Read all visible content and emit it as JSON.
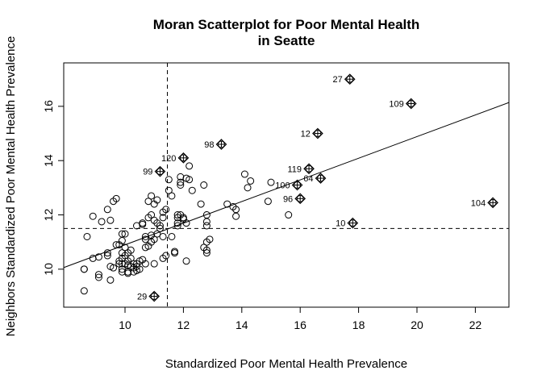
{
  "chart_data": {
    "type": "scatter",
    "title": "Moran Scatterplot for Poor Mental Health",
    "subtitle": "in Seatte",
    "xlabel": "Standardized Poor Mental Health Prevalence",
    "ylabel": "Neighbors Standardized Poor Mental Health Prevalence",
    "xlim": [
      7.9,
      23.15
    ],
    "ylim": [
      8.6,
      17.6
    ],
    "xticks": [
      10,
      12,
      14,
      16,
      18,
      20,
      22
    ],
    "yticks": [
      10,
      12,
      14,
      16
    ],
    "mean_x": 11.45,
    "mean_y": 11.5,
    "regression": {
      "x": [
        7.9,
        23.15
      ],
      "y": [
        10.06,
        16.14
      ]
    },
    "grid": false,
    "legend": "none",
    "points": [
      [
        8.6,
        9.2
      ],
      [
        8.6,
        10.0
      ],
      [
        8.6,
        10.0
      ],
      [
        8.7,
        11.2
      ],
      [
        8.9,
        10.4
      ],
      [
        8.9,
        11.95
      ],
      [
        9.1,
        9.8
      ],
      [
        9.1,
        9.7
      ],
      [
        9.1,
        10.45
      ],
      [
        9.2,
        11.75
      ],
      [
        9.4,
        10.5
      ],
      [
        9.4,
        10.6
      ],
      [
        9.4,
        12.2
      ],
      [
        9.5,
        11.8
      ],
      [
        9.5,
        9.6
      ],
      [
        9.5,
        10.1
      ],
      [
        9.6,
        12.5
      ],
      [
        9.6,
        10.05
      ],
      [
        9.7,
        12.6
      ],
      [
        9.7,
        10.9
      ],
      [
        9.8,
        10.3
      ],
      [
        9.8,
        10.2
      ],
      [
        9.8,
        10.9
      ],
      [
        9.9,
        11.3
      ],
      [
        9.9,
        10.6
      ],
      [
        9.9,
        10.4
      ],
      [
        9.9,
        10.2
      ],
      [
        9.9,
        10.0
      ],
      [
        9.9,
        9.9
      ],
      [
        9.9,
        11.05
      ],
      [
        10.0,
        10.5
      ],
      [
        10.0,
        10.8
      ],
      [
        10.0,
        11.3
      ],
      [
        10.0,
        10.2
      ],
      [
        10.1,
        10.3
      ],
      [
        10.1,
        10.6
      ],
      [
        10.1,
        10.15
      ],
      [
        10.1,
        9.9
      ],
      [
        10.1,
        9.85
      ],
      [
        10.2,
        10.1
      ],
      [
        10.2,
        10.4
      ],
      [
        10.2,
        10.7
      ],
      [
        10.3,
        10.2
      ],
      [
        10.3,
        10.05
      ],
      [
        10.3,
        9.9
      ],
      [
        10.4,
        11.6
      ],
      [
        10.4,
        10.2
      ],
      [
        10.4,
        10.1
      ],
      [
        10.4,
        9.95
      ],
      [
        10.5,
        10.3
      ],
      [
        10.5,
        10.0
      ],
      [
        10.6,
        11.65
      ],
      [
        10.6,
        11.7
      ],
      [
        10.6,
        10.35
      ],
      [
        10.7,
        11.1
      ],
      [
        10.7,
        10.8
      ],
      [
        10.7,
        10.2
      ],
      [
        10.7,
        11.2
      ],
      [
        10.8,
        12.5
      ],
      [
        10.8,
        11.9
      ],
      [
        10.8,
        10.85
      ],
      [
        10.9,
        12.7
      ],
      [
        10.9,
        12.0
      ],
      [
        10.9,
        11.25
      ],
      [
        10.9,
        11.0
      ],
      [
        11.0,
        12.4
      ],
      [
        11.0,
        11.8
      ],
      [
        11.0,
        11.1
      ],
      [
        11.0,
        10.2
      ],
      [
        11.1,
        12.55
      ],
      [
        11.1,
        11.7
      ],
      [
        11.1,
        11.3
      ],
      [
        11.2,
        11.6
      ],
      [
        11.2,
        11.5
      ],
      [
        11.3,
        10.4
      ],
      [
        11.3,
        12.1
      ],
      [
        11.3,
        11.2
      ],
      [
        11.3,
        11.9
      ],
      [
        11.4,
        12.2
      ],
      [
        11.4,
        10.5
      ],
      [
        11.5,
        12.9
      ],
      [
        11.5,
        13.3
      ],
      [
        11.6,
        12.7
      ],
      [
        11.6,
        11.2
      ],
      [
        11.7,
        10.65
      ],
      [
        11.7,
        10.6
      ],
      [
        11.8,
        11.9
      ],
      [
        11.8,
        11.7
      ],
      [
        11.8,
        12.0
      ],
      [
        11.8,
        11.6
      ],
      [
        11.9,
        13.1
      ],
      [
        11.9,
        13.2
      ],
      [
        11.9,
        13.4
      ],
      [
        11.9,
        12.0
      ],
      [
        12.0,
        11.85
      ],
      [
        12.0,
        11.9
      ],
      [
        12.1,
        13.35
      ],
      [
        12.1,
        11.7
      ],
      [
        12.1,
        10.3
      ],
      [
        12.2,
        13.3
      ],
      [
        12.2,
        13.8
      ],
      [
        12.3,
        12.9
      ],
      [
        12.6,
        12.4
      ],
      [
        12.7,
        13.1
      ],
      [
        12.7,
        10.8
      ],
      [
        12.8,
        10.6
      ],
      [
        12.8,
        10.7
      ],
      [
        12.8,
        11.6
      ],
      [
        12.8,
        12.0
      ],
      [
        12.8,
        11.75
      ],
      [
        12.8,
        11.0
      ],
      [
        12.9,
        11.1
      ],
      [
        13.5,
        12.4
      ],
      [
        13.7,
        12.3
      ],
      [
        13.8,
        12.2
      ],
      [
        13.8,
        11.95
      ],
      [
        14.1,
        13.5
      ],
      [
        14.2,
        13.0
      ],
      [
        14.3,
        13.25
      ],
      [
        14.9,
        12.5
      ],
      [
        15.0,
        13.2
      ],
      [
        15.6,
        12.0
      ]
    ],
    "influential": [
      {
        "label": "27",
        "x": 17.7,
        "y": 17.0
      },
      {
        "label": "109",
        "x": 19.8,
        "y": 16.1
      },
      {
        "label": "12",
        "x": 16.6,
        "y": 15.0
      },
      {
        "label": "98",
        "x": 13.3,
        "y": 14.6
      },
      {
        "label": "120",
        "x": 12.0,
        "y": 14.1
      },
      {
        "label": "99",
        "x": 11.2,
        "y": 13.6
      },
      {
        "label": "119",
        "x": 16.3,
        "y": 13.7
      },
      {
        "label": "64",
        "x": 16.7,
        "y": 13.35
      },
      {
        "label": "100",
        "x": 15.9,
        "y": 13.1
      },
      {
        "label": "96",
        "x": 16.0,
        "y": 12.6
      },
      {
        "label": "104",
        "x": 22.6,
        "y": 12.45
      },
      {
        "label": "10",
        "x": 17.8,
        "y": 11.7
      },
      {
        "label": "29",
        "x": 11.0,
        "y": 9.0
      }
    ]
  }
}
